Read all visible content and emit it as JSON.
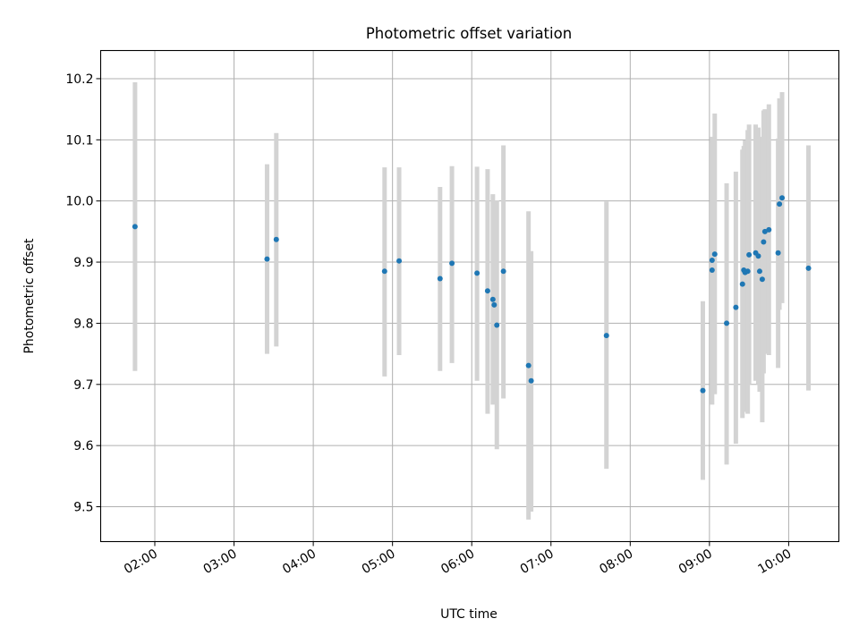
{
  "chart_data": {
    "type": "scatter",
    "title": "Photometric offset variation",
    "xlabel": "UTC time",
    "ylabel": "Photometric offset",
    "xlim": [
      "01:19",
      "10:38"
    ],
    "ylim": [
      9.443,
      10.246
    ],
    "grid": true,
    "x_ticks": [
      "02:00",
      "03:00",
      "04:00",
      "05:00",
      "06:00",
      "07:00",
      "08:00",
      "09:00",
      "10:00"
    ],
    "y_ticks": [
      "9.5",
      "9.6",
      "9.7",
      "9.8",
      "9.9",
      "10.0",
      "10.1",
      "10.2"
    ],
    "colors": {
      "marker": "#1f77b4",
      "errorbar": "#d3d3d3",
      "grid": "#b0b0b0"
    },
    "points": [
      {
        "x": "01:45",
        "y": 9.958,
        "lo": 9.722,
        "hi": 10.194
      },
      {
        "x": "03:25",
        "y": 9.905,
        "lo": 9.75,
        "hi": 10.06
      },
      {
        "x": "03:32",
        "y": 9.937,
        "lo": 9.762,
        "hi": 10.111
      },
      {
        "x": "04:54",
        "y": 9.885,
        "lo": 9.713,
        "hi": 10.055
      },
      {
        "x": "05:05",
        "y": 9.902,
        "lo": 9.748,
        "hi": 10.055
      },
      {
        "x": "05:36",
        "y": 9.873,
        "lo": 9.722,
        "hi": 10.023
      },
      {
        "x": "05:45",
        "y": 9.898,
        "lo": 9.735,
        "hi": 10.057
      },
      {
        "x": "06:04",
        "y": 9.882,
        "lo": 9.706,
        "hi": 10.056
      },
      {
        "x": "06:12",
        "y": 9.853,
        "lo": 9.652,
        "hi": 10.052
      },
      {
        "x": "06:16",
        "y": 9.839,
        "lo": 9.667,
        "hi": 10.011
      },
      {
        "x": "06:17",
        "y": 9.83,
        "lo": 9.675,
        "hi": 9.996
      },
      {
        "x": "06:19",
        "y": 9.797,
        "lo": 9.594,
        "hi": 10.001
      },
      {
        "x": "06:24",
        "y": 9.885,
        "lo": 9.677,
        "hi": 10.091
      },
      {
        "x": "06:43",
        "y": 9.731,
        "lo": 9.479,
        "hi": 9.983
      },
      {
        "x": "06:45",
        "y": 9.706,
        "lo": 9.492,
        "hi": 9.918
      },
      {
        "x": "07:42",
        "y": 9.78,
        "lo": 9.562,
        "hi": 9.999
      },
      {
        "x": "08:55",
        "y": 9.69,
        "lo": 9.544,
        "hi": 9.836
      },
      {
        "x": "09:02",
        "y": 9.887,
        "lo": 9.667,
        "hi": 10.105
      },
      {
        "x": "09:02",
        "y": 9.903,
        "lo": 9.71,
        "hi": 10.095
      },
      {
        "x": "09:04",
        "y": 9.913,
        "lo": 9.684,
        "hi": 10.143
      },
      {
        "x": "09:13",
        "y": 9.8,
        "lo": 9.569,
        "hi": 10.029
      },
      {
        "x": "09:20",
        "y": 9.826,
        "lo": 9.603,
        "hi": 10.048
      },
      {
        "x": "09:25",
        "y": 9.864,
        "lo": 9.645,
        "hi": 10.084
      },
      {
        "x": "09:26",
        "y": 9.887,
        "lo": 9.655,
        "hi": 10.09
      },
      {
        "x": "09:27",
        "y": 9.883,
        "lo": 9.658,
        "hi": 10.099
      },
      {
        "x": "09:29",
        "y": 9.885,
        "lo": 9.652,
        "hi": 10.116
      },
      {
        "x": "09:30",
        "y": 9.912,
        "lo": 9.7,
        "hi": 10.125
      },
      {
        "x": "09:35",
        "y": 9.915,
        "lo": 9.706,
        "hi": 10.125
      },
      {
        "x": "09:37",
        "y": 9.91,
        "lo": 9.7,
        "hi": 10.12
      },
      {
        "x": "09:38",
        "y": 9.885,
        "lo": 9.688,
        "hi": 10.082
      },
      {
        "x": "09:40",
        "y": 9.872,
        "lo": 9.638,
        "hi": 10.105
      },
      {
        "x": "09:41",
        "y": 9.933,
        "lo": 9.718,
        "hi": 10.148
      },
      {
        "x": "09:42",
        "y": 9.95,
        "lo": 9.75,
        "hi": 10.15
      },
      {
        "x": "09:45",
        "y": 9.953,
        "lo": 9.748,
        "hi": 10.158
      },
      {
        "x": "09:52",
        "y": 9.915,
        "lo": 9.727,
        "hi": 10.102
      },
      {
        "x": "09:53",
        "y": 9.995,
        "lo": 9.822,
        "hi": 10.168
      },
      {
        "x": "09:55",
        "y": 10.005,
        "lo": 9.833,
        "hi": 10.178
      },
      {
        "x": "10:15",
        "y": 9.89,
        "lo": 9.69,
        "hi": 10.091
      }
    ]
  }
}
